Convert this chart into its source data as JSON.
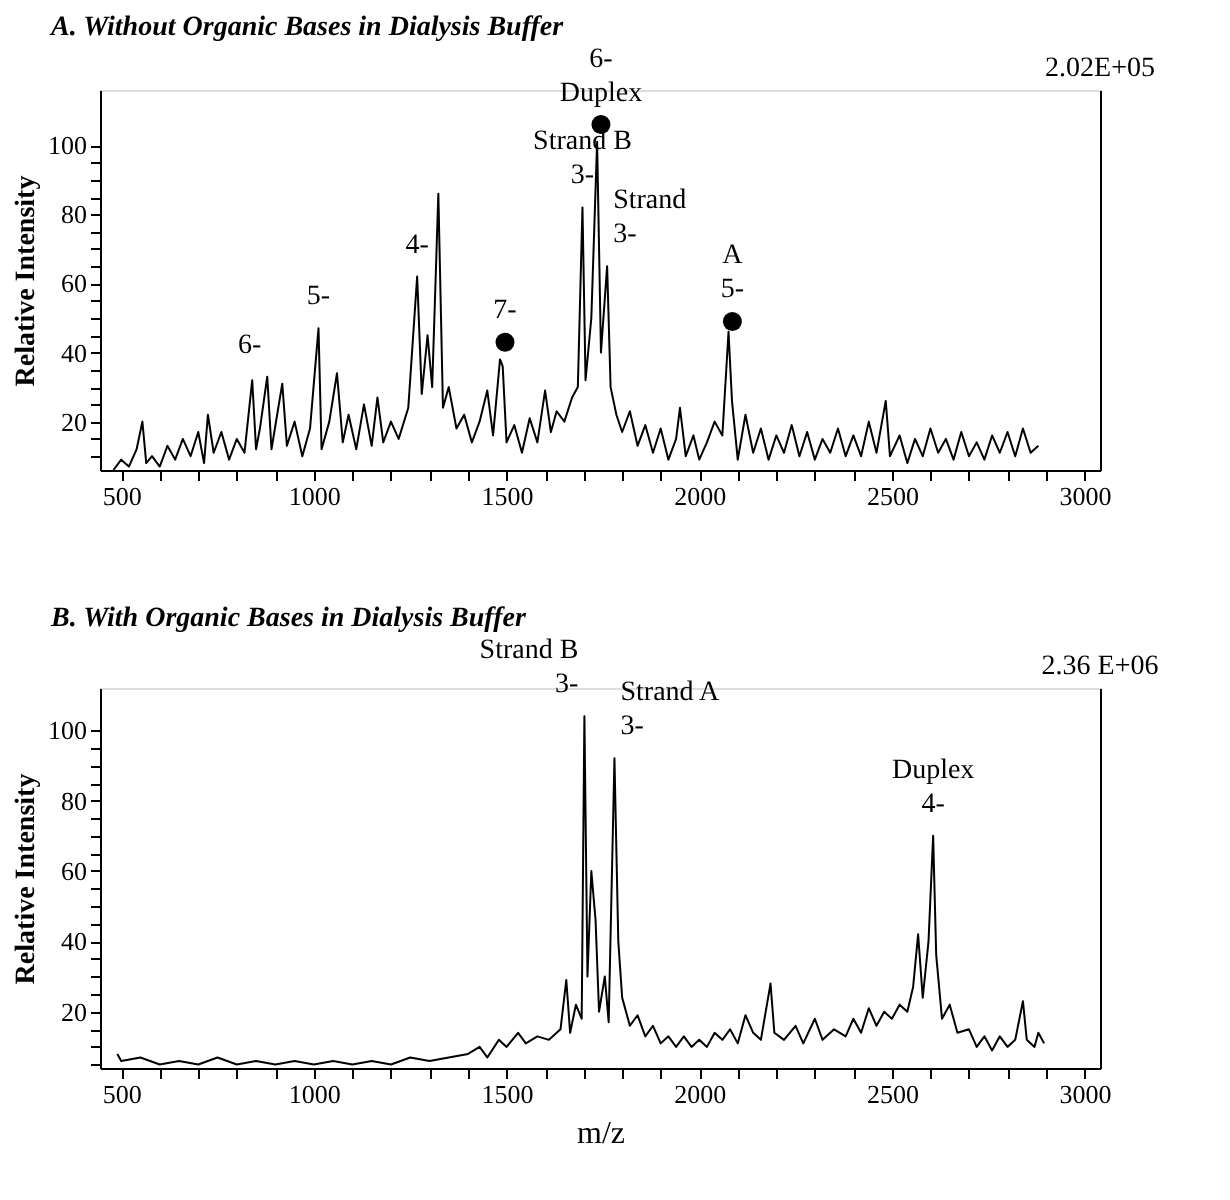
{
  "chart_data": [
    {
      "type": "line",
      "title": "A. Without Organic Bases in Dialysis Buffer",
      "ylabel": "Relative Intensity",
      "xlim": [
        445,
        3040
      ],
      "ylim": [
        6,
        116
      ],
      "xticks": [
        500,
        {
          "value": 600,
          "label": null
        },
        {
          "value": 700,
          "label": null
        },
        {
          "value": 800,
          "label": null
        },
        {
          "value": 900,
          "label": null
        },
        1000,
        {
          "value": 1100,
          "label": null
        },
        {
          "value": 1200,
          "label": null
        },
        {
          "value": 1300,
          "label": null
        },
        {
          "value": 1400,
          "label": null
        },
        1500,
        {
          "value": 1600,
          "label": null
        },
        {
          "value": 1700,
          "label": null
        },
        {
          "value": 1800,
          "label": null
        },
        {
          "value": 1900,
          "label": null
        },
        2000,
        {
          "value": 2100,
          "label": null
        },
        {
          "value": 2200,
          "label": null
        },
        {
          "value": 2300,
          "label": null
        },
        {
          "value": 2400,
          "label": null
        },
        2500,
        {
          "value": 2600,
          "label": null
        },
        {
          "value": 2700,
          "label": null
        },
        {
          "value": 2800,
          "label": null
        },
        {
          "value": 2900,
          "label": null
        },
        3000
      ],
      "yticks": [
        {
          "value": 10,
          "label": null
        },
        {
          "value": 15,
          "label": null
        },
        20,
        {
          "value": 25,
          "label": null
        },
        {
          "value": 30,
          "label": null
        },
        {
          "value": 35,
          "label": null
        },
        40,
        {
          "value": 45,
          "label": null
        },
        {
          "value": 50,
          "label": null
        },
        {
          "value": 55,
          "label": null
        },
        60,
        {
          "value": 65,
          "label": null
        },
        {
          "value": 70,
          "label": null
        },
        {
          "value": 75,
          "label": null
        },
        80,
        {
          "value": 85,
          "label": null
        },
        {
          "value": 90,
          "label": null
        },
        {
          "value": 95,
          "label": null
        },
        100
      ],
      "grid": false,
      "series": [
        {
          "color": "#000000",
          "line_style": "solid",
          "x": [
            480,
            500,
            520,
            540,
            555,
            565,
            580,
            600,
            620,
            640,
            660,
            680,
            700,
            715,
            725,
            740,
            760,
            780,
            800,
            820,
            840,
            850,
            860,
            879,
            890,
            918,
            930,
            950,
            970,
            990,
            1012,
            1020,
            1040,
            1060,
            1075,
            1090,
            1110,
            1130,
            1150,
            1165,
            1180,
            1200,
            1220,
            1245,
            1268,
            1280,
            1295,
            1307,
            1323,
            1335,
            1350,
            1370,
            1390,
            1410,
            1430,
            1450,
            1465,
            1483,
            1490,
            1500,
            1520,
            1540,
            1560,
            1580,
            1600,
            1615,
            1630,
            1650,
            1670,
            1685,
            1697,
            1705,
            1720,
            1735,
            1745,
            1761,
            1770,
            1785,
            1800,
            1820,
            1840,
            1860,
            1880,
            1900,
            1920,
            1940,
            1950,
            1965,
            1985,
            2000,
            2020,
            2040,
            2060,
            2076,
            2085,
            2100,
            2120,
            2140,
            2160,
            2180,
            2200,
            2220,
            2240,
            2260,
            2280,
            2300,
            2320,
            2340,
            2360,
            2380,
            2400,
            2420,
            2440,
            2460,
            2484,
            2495,
            2520,
            2540,
            2560,
            2580,
            2600,
            2620,
            2640,
            2660,
            2680,
            2700,
            2720,
            2740,
            2760,
            2780,
            2800,
            2820,
            2840,
            2860,
            2880
          ],
          "values": [
            6,
            9,
            7,
            12,
            20,
            8,
            10,
            7,
            13,
            9,
            15,
            10,
            17,
            8,
            22,
            11,
            17,
            9,
            15,
            11,
            32,
            12,
            18,
            33,
            12,
            31,
            13,
            20,
            10,
            18,
            47,
            12,
            20,
            34,
            14,
            22,
            12,
            25,
            13,
            27,
            14,
            20,
            15,
            24,
            62,
            28,
            45,
            30,
            86,
            24,
            30,
            18,
            22,
            14,
            20,
            29,
            16,
            38,
            36,
            14,
            19,
            11,
            21,
            14,
            29,
            17,
            23,
            20,
            27,
            30,
            82,
            32,
            50,
            101,
            40,
            65,
            30,
            22,
            17,
            23,
            13,
            19,
            11,
            18,
            9,
            15,
            24,
            10,
            16,
            9,
            14,
            20,
            16,
            46,
            26,
            9,
            22,
            11,
            18,
            9,
            16,
            11,
            19,
            10,
            17,
            9,
            15,
            11,
            18,
            10,
            16,
            10,
            20,
            11,
            26,
            10,
            16,
            8,
            15,
            10,
            18,
            11,
            15,
            9,
            17,
            10,
            14,
            9,
            16,
            11,
            17,
            10,
            18,
            11,
            13
          ]
        },
        {
          "type": "scatter",
          "color": "#000000",
          "marker": "circle",
          "x": [
            1496,
            1745,
            2086
          ],
          "values": [
            43,
            106,
            49
          ]
        }
      ],
      "annotations": [
        {
          "text": "6-",
          "x": 879,
          "y": 33
        },
        {
          "text": "5-",
          "x": 1012,
          "y": 47
        },
        {
          "text": "4-",
          "x": 1268,
          "y": 62
        },
        {
          "text": "7-",
          "x": 1496,
          "y": 43
        },
        {
          "text": "Strand B",
          "x": 1697,
          "y": 82
        },
        {
          "text": "3-",
          "x": 1697,
          "y": 82
        },
        {
          "text": "6-",
          "x": 1745,
          "y": 106
        },
        {
          "text": "Duplex",
          "x": 1745,
          "y": 106
        },
        {
          "text": "Strand",
          "x": 1761,
          "y": 65
        },
        {
          "text": "A",
          "x": 2086,
          "y": 49
        },
        {
          "text": "3-",
          "x": 1761,
          "y": 65
        },
        {
          "text": "5-",
          "x": 2086,
          "y": 49
        },
        "2.02E+05"
      ]
    },
    {
      "type": "line",
      "title": "B. With Organic Bases in Dialysis Buffer",
      "xlabel": "m/z",
      "ylabel": "Relative Intensity",
      "xlim": [
        445,
        3040
      ],
      "ylim": [
        4,
        112
      ],
      "xticks": [
        500,
        {
          "value": 600,
          "label": null
        },
        {
          "value": 700,
          "label": null
        },
        {
          "value": 800,
          "label": null
        },
        {
          "value": 900,
          "label": null
        },
        1000,
        {
          "value": 1100,
          "label": null
        },
        {
          "value": 1200,
          "label": null
        },
        {
          "value": 1300,
          "label": null
        },
        {
          "value": 1400,
          "label": null
        },
        1500,
        {
          "value": 1600,
          "label": null
        },
        {
          "value": 1700,
          "label": null
        },
        {
          "value": 1800,
          "label": null
        },
        {
          "value": 1900,
          "label": null
        },
        2000,
        {
          "value": 2100,
          "label": null
        },
        {
          "value": 2200,
          "label": null
        },
        {
          "value": 2300,
          "label": null
        },
        {
          "value": 2400,
          "label": null
        },
        2500,
        {
          "value": 2600,
          "label": null
        },
        {
          "value": 2700,
          "label": null
        },
        {
          "value": 2800,
          "label": null
        },
        {
          "value": 2900,
          "label": null
        },
        3000
      ],
      "yticks": [
        {
          "value": 5,
          "label": null
        },
        {
          "value": 10,
          "label": null
        },
        {
          "value": 15,
          "label": null
        },
        20,
        {
          "value": 25,
          "label": null
        },
        {
          "value": 30,
          "label": null
        },
        {
          "value": 35,
          "label": null
        },
        40,
        {
          "value": 45,
          "label": null
        },
        {
          "value": 50,
          "label": null
        },
        {
          "value": 55,
          "label": null
        },
        60,
        {
          "value": 65,
          "label": null
        },
        {
          "value": 70,
          "label": null
        },
        {
          "value": 75,
          "label": null
        },
        80,
        {
          "value": 85,
          "label": null
        },
        {
          "value": 90,
          "label": null
        },
        {
          "value": 95,
          "label": null
        },
        100
      ],
      "grid": false,
      "series": [
        {
          "color": "#000000",
          "line_style": "solid",
          "x": [
            490,
            500,
            550,
            600,
            650,
            700,
            750,
            800,
            850,
            900,
            950,
            1000,
            1050,
            1100,
            1150,
            1200,
            1250,
            1300,
            1350,
            1400,
            1430,
            1450,
            1480,
            1500,
            1530,
            1550,
            1580,
            1610,
            1640,
            1655,
            1665,
            1680,
            1695,
            1702,
            1710,
            1720,
            1731,
            1740,
            1755,
            1765,
            1780,
            1790,
            1800,
            1820,
            1840,
            1860,
            1880,
            1900,
            1920,
            1940,
            1960,
            1980,
            2000,
            2020,
            2040,
            2060,
            2080,
            2100,
            2120,
            2140,
            2160,
            2185,
            2195,
            2220,
            2250,
            2270,
            2300,
            2320,
            2350,
            2380,
            2400,
            2420,
            2440,
            2460,
            2480,
            2500,
            2520,
            2540,
            2555,
            2568,
            2580,
            2595,
            2607,
            2615,
            2630,
            2650,
            2670,
            2700,
            2720,
            2740,
            2760,
            2780,
            2800,
            2820,
            2840,
            2850,
            2870,
            2880,
            2895
          ],
          "values": [
            8,
            6,
            7,
            5,
            6,
            5,
            7,
            5,
            6,
            5,
            6,
            5,
            6,
            5,
            6,
            5,
            7,
            6,
            7,
            8,
            10,
            7,
            12,
            10,
            14,
            11,
            13,
            12,
            15,
            29,
            14,
            22,
            18,
            104,
            30,
            60,
            46,
            20,
            30,
            17,
            92,
            40,
            24,
            16,
            19,
            13,
            16,
            11,
            13,
            10,
            13,
            10,
            12,
            10,
            14,
            12,
            15,
            11,
            19,
            14,
            12,
            28,
            14,
            12,
            16,
            11,
            18,
            12,
            15,
            13,
            18,
            14,
            21,
            16,
            20,
            18,
            22,
            20,
            27,
            42,
            24,
            40,
            70,
            36,
            18,
            22,
            14,
            15,
            10,
            13,
            9,
            13,
            10,
            12,
            23,
            12,
            10,
            14,
            11
          ]
        }
      ],
      "annotations": [
        {
          "text": "Strand B",
          "x": 1702,
          "y": 104
        },
        {
          "text": "3-",
          "x": 1702,
          "y": 104
        },
        {
          "text": "Strand A",
          "x": 1780,
          "y": 92
        },
        {
          "text": "3-",
          "x": 1780,
          "y": 92
        },
        {
          "text": "Duplex",
          "x": 2607,
          "y": 70
        },
        {
          "text": "4-",
          "x": 2607,
          "y": 70
        },
        "2.36 E+06"
      ]
    }
  ]
}
